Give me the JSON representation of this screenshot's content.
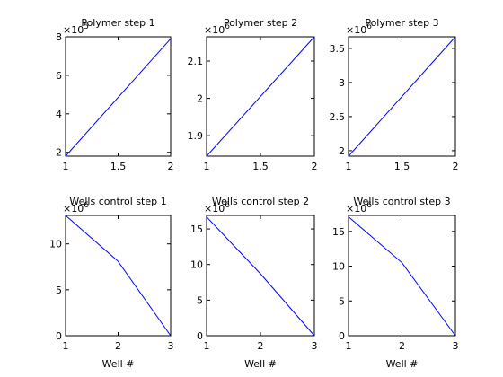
{
  "chart_data": [
    {
      "type": "line",
      "title": "Polymer step 1",
      "xlabel": "",
      "exponent": "5",
      "x": [
        1,
        2
      ],
      "y": [
        1.8,
        7.9
      ],
      "xlim": [
        1,
        2
      ],
      "ylim": [
        1.8,
        8
      ],
      "xticks": [
        1,
        1.5,
        2
      ],
      "xtick_labels": [
        "1",
        "1.5",
        "2"
      ],
      "yticks": [
        2,
        4,
        6,
        8
      ],
      "ytick_labels": [
        "2",
        "4",
        "6",
        "8"
      ],
      "line_color": "#0000ff"
    },
    {
      "type": "line",
      "title": "Polymer step 2",
      "xlabel": "",
      "exponent": "6",
      "x": [
        1,
        2
      ],
      "y": [
        1.845,
        2.165
      ],
      "xlim": [
        1,
        2
      ],
      "ylim": [
        1.845,
        2.165
      ],
      "xticks": [
        1,
        1.5,
        2
      ],
      "xtick_labels": [
        "1",
        "1.5",
        "2"
      ],
      "yticks": [
        1.9,
        2,
        2.1
      ],
      "ytick_labels": [
        "1.9",
        "2",
        "2.1"
      ],
      "line_color": "#0000ff"
    },
    {
      "type": "line",
      "title": "Polymer step 3",
      "xlabel": "",
      "exponent": "6",
      "x": [
        1,
        2
      ],
      "y": [
        1.92,
        3.67
      ],
      "xlim": [
        1,
        2
      ],
      "ylim": [
        1.92,
        3.67
      ],
      "xticks": [
        1,
        1.5,
        2
      ],
      "xtick_labels": [
        "1",
        "1.5",
        "2"
      ],
      "yticks": [
        2,
        2.5,
        3,
        3.5
      ],
      "ytick_labels": [
        "2",
        "2.5",
        "3",
        "3.5"
      ],
      "line_color": "#0000ff"
    },
    {
      "type": "line",
      "title": "Wells control step 1",
      "xlabel": "Well #",
      "exponent": "6",
      "x": [
        1,
        2,
        3
      ],
      "y": [
        13.1,
        8.1,
        0
      ],
      "xlim": [
        1,
        3
      ],
      "ylim": [
        0,
        13.1
      ],
      "xticks": [
        1,
        2,
        3
      ],
      "xtick_labels": [
        "1",
        "2",
        "3"
      ],
      "yticks": [
        0,
        5,
        10
      ],
      "ytick_labels": [
        "0",
        "5",
        "10"
      ],
      "line_color": "#0000ff"
    },
    {
      "type": "line",
      "title": "Wells control step 2",
      "xlabel": "Well #",
      "exponent": "6",
      "x": [
        1,
        2,
        3
      ],
      "y": [
        16.7,
        8.7,
        0
      ],
      "xlim": [
        1,
        3
      ],
      "ylim": [
        0,
        16.9
      ],
      "xticks": [
        1,
        2,
        3
      ],
      "xtick_labels": [
        "1",
        "2",
        "3"
      ],
      "yticks": [
        0,
        5,
        10,
        15
      ],
      "ytick_labels": [
        "0",
        "5",
        "10",
        "15"
      ],
      "line_color": "#0000ff"
    },
    {
      "type": "line",
      "title": "Wells control step 3",
      "xlabel": "Well #",
      "exponent": "6",
      "x": [
        1,
        2,
        3
      ],
      "y": [
        17.1,
        10.5,
        0
      ],
      "xlim": [
        1,
        3
      ],
      "ylim": [
        0,
        17.3
      ],
      "xticks": [
        1,
        2,
        3
      ],
      "xtick_labels": [
        "1",
        "2",
        "3"
      ],
      "yticks": [
        0,
        5,
        10,
        15
      ],
      "ytick_labels": [
        "0",
        "5",
        "10",
        "15"
      ],
      "line_color": "#0000ff"
    }
  ]
}
